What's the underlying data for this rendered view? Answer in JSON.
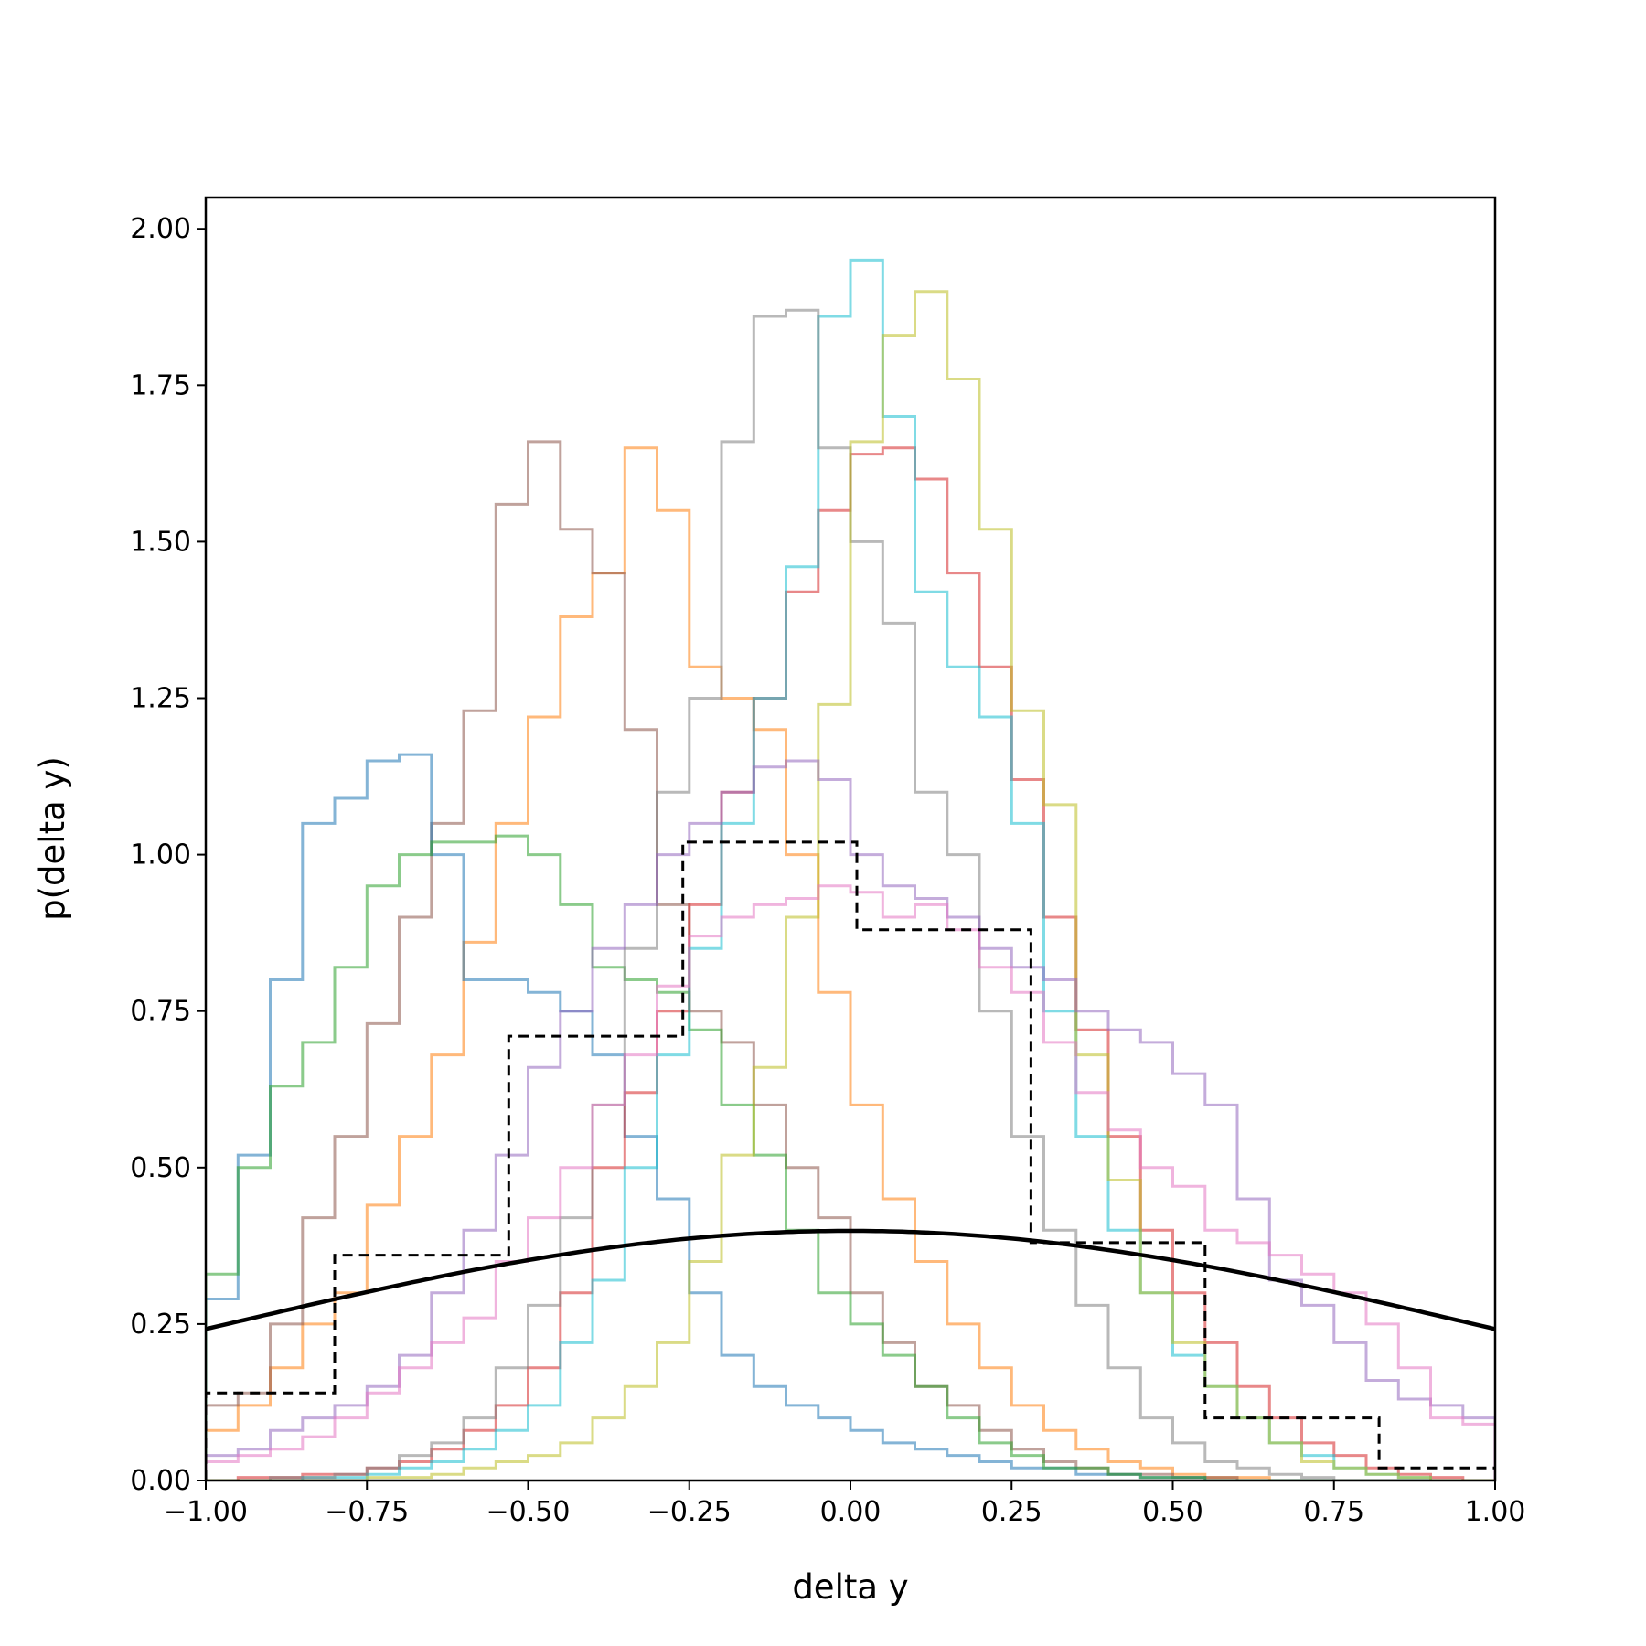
{
  "chart_data": {
    "type": "line",
    "subtype": "step-histogram",
    "title": "",
    "xlabel": "delta y",
    "ylabel": "p(delta y)",
    "xlim": [
      -1.0,
      1.0
    ],
    "ylim": [
      0.0,
      2.05
    ],
    "grid": false,
    "legend": "none",
    "x_ticks": [
      "−1.00",
      "−0.75",
      "−0.50",
      "−0.25",
      "0.00",
      "0.25",
      "0.50",
      "0.75",
      "1.00"
    ],
    "y_ticks": [
      "0.00",
      "0.25",
      "0.50",
      "0.75",
      "1.00",
      "1.25",
      "1.50",
      "1.75",
      "2.00"
    ],
    "series": [
      {
        "color": "#ff7f0e",
        "alpha": 0.55,
        "style": "solid",
        "edges": [
          -1.0,
          -0.95,
          -0.9,
          -0.85,
          -0.8,
          -0.75,
          -0.7,
          -0.65,
          -0.6,
          -0.55,
          -0.5,
          -0.45,
          -0.4,
          -0.35,
          -0.3,
          -0.25,
          -0.2,
          -0.15,
          -0.1,
          -0.05,
          0.0,
          0.05,
          0.1,
          0.15,
          0.2,
          0.25,
          0.3,
          0.35,
          0.4,
          0.45,
          0.5,
          0.55,
          0.6,
          0.65,
          0.7,
          0.75,
          0.8,
          0.85,
          0.9,
          0.95,
          1.0
        ],
        "values": [
          0.08,
          0.12,
          0.18,
          0.25,
          0.3,
          0.44,
          0.55,
          0.68,
          0.86,
          1.05,
          1.22,
          1.38,
          1.45,
          1.65,
          1.55,
          1.3,
          1.25,
          1.2,
          1.0,
          0.78,
          0.6,
          0.45,
          0.35,
          0.25,
          0.18,
          0.12,
          0.08,
          0.05,
          0.03,
          0.02,
          0.01,
          0.005,
          0.005,
          0.0,
          0.0,
          0.0,
          0.0,
          0.0,
          0.0,
          0.0
        ]
      },
      {
        "color": "#8c564b",
        "alpha": 0.55,
        "style": "solid",
        "edges": [
          -1.0,
          -0.95,
          -0.9,
          -0.85,
          -0.8,
          -0.75,
          -0.7,
          -0.65,
          -0.6,
          -0.55,
          -0.5,
          -0.45,
          -0.4,
          -0.35,
          -0.3,
          -0.25,
          -0.2,
          -0.15,
          -0.1,
          -0.05,
          0.0,
          0.05,
          0.1,
          0.15,
          0.2,
          0.25,
          0.3,
          0.35,
          0.4,
          0.45,
          0.5,
          0.55,
          0.6,
          0.65,
          0.7,
          0.75,
          0.8,
          0.85,
          0.9,
          0.95,
          1.0
        ],
        "values": [
          0.12,
          0.14,
          0.25,
          0.42,
          0.55,
          0.73,
          0.9,
          1.05,
          1.23,
          1.56,
          1.66,
          1.52,
          1.45,
          1.2,
          0.92,
          0.75,
          0.7,
          0.6,
          0.5,
          0.42,
          0.3,
          0.22,
          0.15,
          0.12,
          0.08,
          0.05,
          0.03,
          0.02,
          0.01,
          0.01,
          0.005,
          0.005,
          0.0,
          0.0,
          0.0,
          0.0,
          0.0,
          0.0,
          0.0,
          0.0
        ]
      },
      {
        "color": "#1f77b4",
        "alpha": 0.55,
        "style": "solid",
        "edges": [
          -1.0,
          -0.95,
          -0.9,
          -0.85,
          -0.8,
          -0.75,
          -0.7,
          -0.65,
          -0.6,
          -0.55,
          -0.5,
          -0.45,
          -0.4,
          -0.35,
          -0.3,
          -0.25,
          -0.2,
          -0.15,
          -0.1,
          -0.05,
          0.0,
          0.05,
          0.1,
          0.15,
          0.2,
          0.25,
          0.3,
          0.35,
          0.4,
          0.45,
          0.5,
          0.55,
          0.6,
          0.65,
          0.7,
          0.75,
          0.8,
          0.85,
          0.9,
          0.95,
          1.0
        ],
        "values": [
          0.29,
          0.52,
          0.8,
          1.05,
          1.09,
          1.15,
          1.16,
          1.0,
          0.8,
          0.8,
          0.78,
          0.75,
          0.68,
          0.55,
          0.45,
          0.3,
          0.2,
          0.15,
          0.12,
          0.1,
          0.08,
          0.06,
          0.05,
          0.04,
          0.03,
          0.02,
          0.02,
          0.01,
          0.01,
          0.005,
          0.005,
          0.0,
          0.0,
          0.0,
          0.0,
          0.0,
          0.0,
          0.0,
          0.0,
          0.0
        ]
      },
      {
        "color": "#2ca02c",
        "alpha": 0.55,
        "style": "solid",
        "edges": [
          -1.0,
          -0.95,
          -0.9,
          -0.85,
          -0.8,
          -0.75,
          -0.7,
          -0.65,
          -0.6,
          -0.55,
          -0.5,
          -0.45,
          -0.4,
          -0.35,
          -0.3,
          -0.25,
          -0.2,
          -0.15,
          -0.1,
          -0.05,
          0.0,
          0.05,
          0.1,
          0.15,
          0.2,
          0.25,
          0.3,
          0.35,
          0.4,
          0.45,
          0.5,
          0.55,
          0.6,
          0.65,
          0.7,
          0.75,
          0.8,
          0.85,
          0.9,
          0.95,
          1.0
        ],
        "values": [
          0.33,
          0.5,
          0.63,
          0.7,
          0.82,
          0.95,
          1.0,
          1.02,
          1.02,
          1.03,
          1.0,
          0.92,
          0.82,
          0.8,
          0.78,
          0.72,
          0.6,
          0.52,
          0.4,
          0.3,
          0.25,
          0.2,
          0.15,
          0.1,
          0.06,
          0.04,
          0.02,
          0.02,
          0.01,
          0.005,
          0.005,
          0.0,
          0.0,
          0.0,
          0.0,
          0.0,
          0.0,
          0.0,
          0.0,
          0.0
        ]
      },
      {
        "color": "#d62728",
        "alpha": 0.55,
        "style": "solid",
        "edges": [
          -1.0,
          -0.95,
          -0.9,
          -0.85,
          -0.8,
          -0.75,
          -0.7,
          -0.65,
          -0.6,
          -0.55,
          -0.5,
          -0.45,
          -0.4,
          -0.35,
          -0.3,
          -0.25,
          -0.2,
          -0.15,
          -0.1,
          -0.05,
          0.0,
          0.05,
          0.1,
          0.15,
          0.2,
          0.25,
          0.3,
          0.35,
          0.4,
          0.45,
          0.5,
          0.55,
          0.6,
          0.65,
          0.7,
          0.75,
          0.8,
          0.85,
          0.9,
          0.95,
          1.0
        ],
        "values": [
          0.0,
          0.005,
          0.005,
          0.01,
          0.01,
          0.02,
          0.03,
          0.05,
          0.08,
          0.12,
          0.18,
          0.3,
          0.5,
          0.62,
          0.75,
          0.92,
          1.1,
          1.25,
          1.42,
          1.55,
          1.64,
          1.65,
          1.6,
          1.45,
          1.3,
          1.12,
          0.9,
          0.72,
          0.55,
          0.4,
          0.3,
          0.22,
          0.15,
          0.1,
          0.06,
          0.04,
          0.02,
          0.01,
          0.005,
          0.0
        ]
      },
      {
        "color": "#17becf",
        "alpha": 0.55,
        "style": "solid",
        "edges": [
          -1.0,
          -0.95,
          -0.9,
          -0.85,
          -0.8,
          -0.75,
          -0.7,
          -0.65,
          -0.6,
          -0.55,
          -0.5,
          -0.45,
          -0.4,
          -0.35,
          -0.3,
          -0.25,
          -0.2,
          -0.15,
          -0.1,
          -0.05,
          0.0,
          0.05,
          0.1,
          0.15,
          0.2,
          0.25,
          0.3,
          0.35,
          0.4,
          0.45,
          0.5,
          0.55,
          0.6,
          0.65,
          0.7,
          0.75,
          0.8,
          0.85,
          0.9,
          0.95,
          1.0
        ],
        "values": [
          0.0,
          0.0,
          0.0,
          0.005,
          0.005,
          0.01,
          0.02,
          0.03,
          0.05,
          0.08,
          0.12,
          0.22,
          0.32,
          0.5,
          0.68,
          0.85,
          1.05,
          1.25,
          1.46,
          1.86,
          1.95,
          1.7,
          1.42,
          1.3,
          1.22,
          1.05,
          0.75,
          0.55,
          0.4,
          0.3,
          0.2,
          0.15,
          0.1,
          0.06,
          0.04,
          0.02,
          0.01,
          0.005,
          0.0,
          0.0
        ]
      },
      {
        "color": "#7f7f7f",
        "alpha": 0.55,
        "style": "solid",
        "edges": [
          -1.0,
          -0.95,
          -0.9,
          -0.85,
          -0.8,
          -0.75,
          -0.7,
          -0.65,
          -0.6,
          -0.55,
          -0.5,
          -0.45,
          -0.4,
          -0.35,
          -0.3,
          -0.25,
          -0.2,
          -0.15,
          -0.1,
          -0.05,
          0.0,
          0.05,
          0.1,
          0.15,
          0.2,
          0.25,
          0.3,
          0.35,
          0.4,
          0.45,
          0.5,
          0.55,
          0.6,
          0.65,
          0.7,
          0.75,
          0.8,
          0.85,
          0.9,
          0.95,
          1.0
        ],
        "values": [
          0.0,
          0.0,
          0.005,
          0.005,
          0.01,
          0.02,
          0.04,
          0.06,
          0.1,
          0.18,
          0.28,
          0.42,
          0.6,
          0.85,
          1.1,
          1.25,
          1.66,
          1.86,
          1.87,
          1.65,
          1.5,
          1.37,
          1.1,
          1.0,
          0.75,
          0.55,
          0.4,
          0.28,
          0.18,
          0.1,
          0.06,
          0.03,
          0.02,
          0.01,
          0.005,
          0.0,
          0.0,
          0.0,
          0.0,
          0.0
        ]
      },
      {
        "color": "#bcbd22",
        "alpha": 0.55,
        "style": "solid",
        "edges": [
          -1.0,
          -0.95,
          -0.9,
          -0.85,
          -0.8,
          -0.75,
          -0.7,
          -0.65,
          -0.6,
          -0.55,
          -0.5,
          -0.45,
          -0.4,
          -0.35,
          -0.3,
          -0.25,
          -0.2,
          -0.15,
          -0.1,
          -0.05,
          0.0,
          0.05,
          0.1,
          0.15,
          0.2,
          0.25,
          0.3,
          0.35,
          0.4,
          0.45,
          0.5,
          0.55,
          0.6,
          0.65,
          0.7,
          0.75,
          0.8,
          0.85,
          0.9,
          0.95,
          1.0
        ],
        "values": [
          0.0,
          0.0,
          0.0,
          0.0,
          0.0,
          0.005,
          0.005,
          0.01,
          0.02,
          0.03,
          0.04,
          0.06,
          0.1,
          0.15,
          0.22,
          0.35,
          0.52,
          0.66,
          0.9,
          1.24,
          1.66,
          1.83,
          1.9,
          1.76,
          1.52,
          1.23,
          1.08,
          0.68,
          0.48,
          0.3,
          0.22,
          0.15,
          0.1,
          0.06,
          0.03,
          0.02,
          0.01,
          0.005,
          0.0,
          0.0
        ]
      },
      {
        "color": "#9467bd",
        "alpha": 0.55,
        "style": "solid",
        "edges": [
          -1.0,
          -0.95,
          -0.9,
          -0.85,
          -0.8,
          -0.75,
          -0.7,
          -0.65,
          -0.6,
          -0.55,
          -0.5,
          -0.45,
          -0.4,
          -0.35,
          -0.3,
          -0.25,
          -0.2,
          -0.15,
          -0.1,
          -0.05,
          0.0,
          0.05,
          0.1,
          0.15,
          0.2,
          0.25,
          0.3,
          0.35,
          0.4,
          0.45,
          0.5,
          0.55,
          0.6,
          0.65,
          0.7,
          0.75,
          0.8,
          0.85,
          0.9,
          0.95,
          1.0
        ],
        "values": [
          0.04,
          0.05,
          0.08,
          0.1,
          0.12,
          0.15,
          0.2,
          0.3,
          0.4,
          0.52,
          0.66,
          0.75,
          0.85,
          0.92,
          1.0,
          1.05,
          1.1,
          1.14,
          1.15,
          1.12,
          1.0,
          0.95,
          0.93,
          0.9,
          0.85,
          0.82,
          0.8,
          0.75,
          0.72,
          0.7,
          0.65,
          0.6,
          0.45,
          0.32,
          0.28,
          0.22,
          0.16,
          0.13,
          0.12,
          0.1
        ]
      },
      {
        "color": "#e377c2",
        "alpha": 0.55,
        "style": "solid",
        "edges": [
          -1.0,
          -0.95,
          -0.9,
          -0.85,
          -0.8,
          -0.75,
          -0.7,
          -0.65,
          -0.6,
          -0.55,
          -0.5,
          -0.45,
          -0.4,
          -0.35,
          -0.3,
          -0.25,
          -0.2,
          -0.15,
          -0.1,
          -0.05,
          0.0,
          0.05,
          0.1,
          0.15,
          0.2,
          0.25,
          0.3,
          0.35,
          0.4,
          0.45,
          0.5,
          0.55,
          0.6,
          0.65,
          0.7,
          0.75,
          0.8,
          0.85,
          0.9,
          0.95,
          1.0
        ],
        "values": [
          0.03,
          0.04,
          0.05,
          0.07,
          0.1,
          0.14,
          0.18,
          0.22,
          0.26,
          0.35,
          0.42,
          0.5,
          0.6,
          0.68,
          0.79,
          0.87,
          0.9,
          0.92,
          0.93,
          0.95,
          0.94,
          0.9,
          0.92,
          0.88,
          0.82,
          0.78,
          0.7,
          0.62,
          0.56,
          0.5,
          0.47,
          0.4,
          0.38,
          0.36,
          0.33,
          0.3,
          0.25,
          0.18,
          0.1,
          0.09
        ]
      },
      {
        "color": "#000000",
        "alpha": 1.0,
        "style": "dashed",
        "edges": [
          -1.0,
          -0.8,
          -0.53,
          -0.26,
          0.01,
          0.28,
          0.55,
          0.82,
          1.09
        ],
        "values": [
          0.14,
          0.36,
          0.71,
          1.02,
          0.88,
          0.38,
          0.1,
          0.02
        ]
      }
    ],
    "gaussian_curve": {
      "color": "#000000",
      "mean": 0.0,
      "std": 1.0,
      "peak": 0.3989
    }
  }
}
